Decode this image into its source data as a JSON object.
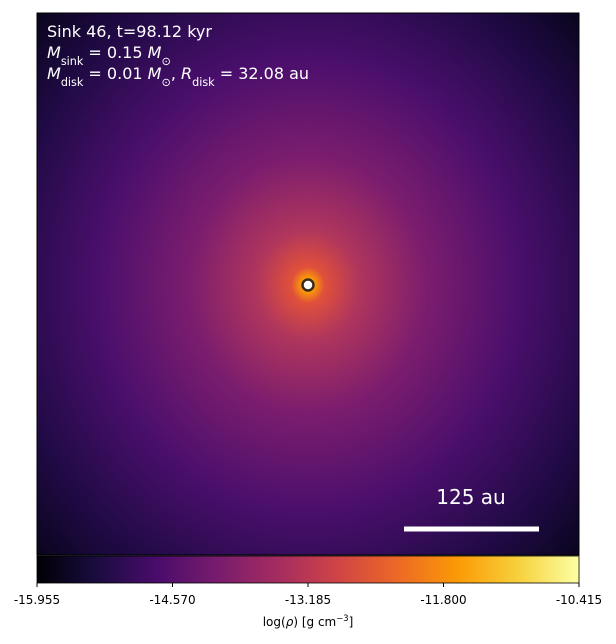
{
  "chart_data": {
    "type": "heatmap",
    "annotations": [
      [
        {
          "text": "Sink 46, t=98.12 kyr"
        }
      ],
      [
        {
          "text": "M",
          "italic": true
        },
        {
          "text": "sink",
          "sub": true
        },
        {
          "text": " = 0.15 "
        },
        {
          "text": "M",
          "italic": true
        },
        {
          "text": "⊙",
          "sub": true
        }
      ],
      [
        {
          "text": "M",
          "italic": true
        },
        {
          "text": "disk",
          "sub": true
        },
        {
          "text": " = 0.01 "
        },
        {
          "text": "M",
          "italic": true
        },
        {
          "text": "⊙",
          "sub": true
        },
        {
          "text": ", "
        },
        {
          "text": "R",
          "italic": true
        },
        {
          "text": "disk",
          "sub": true
        },
        {
          "text": " = 32.08 au"
        }
      ]
    ],
    "scale_bar_label": "125 au",
    "colorbar": {
      "label": [
        {
          "text": "log("
        },
        {
          "text": "ρ",
          "italic": true
        },
        {
          "text": ") [g cm"
        },
        {
          "text": "−3",
          "sup": true
        },
        {
          "text": "]"
        }
      ],
      "clim": [
        -15.955,
        -10.415
      ],
      "ticks": [
        -15.955,
        {
          "value": -14.57,
          "label": "-14.570"
        },
        -13.185,
        {
          "value": -11.8,
          "label": "-11.800"
        },
        -10.415
      ],
      "colors": [
        "#000004",
        "#1b0c41",
        "#4a0c6b",
        "#781c6d",
        "#a52c60",
        "#cf4446",
        "#ed6925",
        "#fb9b06",
        "#f7d13d",
        "#fcffa4"
      ]
    }
  }
}
